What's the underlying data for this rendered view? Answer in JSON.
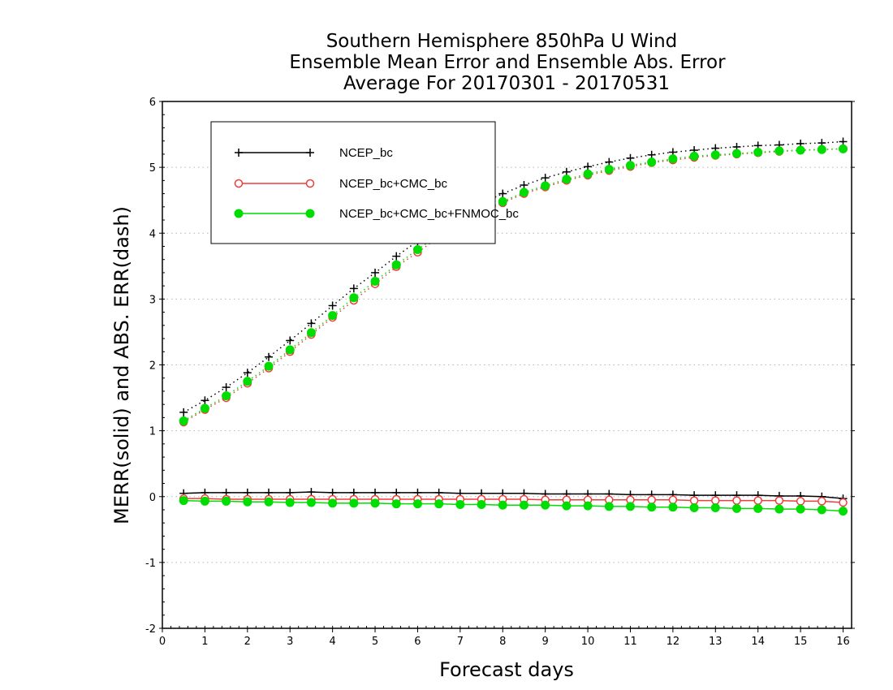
{
  "chart_data": {
    "type": "line",
    "title_lines": [
      "Southern Hemisphere 850hPa U Wind",
      "Ensemble Mean Error and Ensemble Abs. Error",
      "Average For 20170301 - 20170531"
    ],
    "xlabel": "Forecast days",
    "ylabel": "MERR(solid) and ABS. ERR(dash)",
    "xlim": [
      0,
      16.2
    ],
    "ylim": [
      -2,
      6
    ],
    "x_ticks": [
      "0",
      "1",
      "2",
      "3",
      "4",
      "5",
      "6",
      "7",
      "8",
      "9",
      "10",
      "11",
      "12",
      "13",
      "14",
      "15",
      "16"
    ],
    "y_ticks": [
      "-2",
      "-1",
      "0",
      "1",
      "2",
      "3",
      "4",
      "5",
      "6"
    ],
    "grid": "horizontal dotted",
    "legend_position": "top-left",
    "x": [
      0.5,
      1,
      1.5,
      2,
      2.5,
      3,
      3.5,
      4,
      4.5,
      5,
      5.5,
      6,
      6.5,
      7,
      7.5,
      8,
      8.5,
      9,
      9.5,
      10,
      10.5,
      11,
      11.5,
      12,
      12.5,
      13,
      13.5,
      14,
      14.5,
      15,
      15.5,
      16
    ],
    "series": [
      {
        "name": "NCEP_bc",
        "color": "#000000",
        "marker": "plus",
        "merr": [
          0.05,
          0.06,
          0.06,
          0.06,
          0.06,
          0.06,
          0.07,
          0.06,
          0.06,
          0.06,
          0.06,
          0.06,
          0.06,
          0.05,
          0.05,
          0.05,
          0.05,
          0.04,
          0.04,
          0.04,
          0.04,
          0.03,
          0.03,
          0.03,
          0.02,
          0.02,
          0.02,
          0.02,
          0.01,
          0.01,
          0.0,
          -0.03
        ],
        "abs_err": [
          1.28,
          1.46,
          1.66,
          1.88,
          2.12,
          2.37,
          2.63,
          2.9,
          3.16,
          3.4,
          3.65,
          3.88,
          4.1,
          4.28,
          4.45,
          4.6,
          4.73,
          4.84,
          4.93,
          5.01,
          5.08,
          5.14,
          5.19,
          5.23,
          5.26,
          5.29,
          5.31,
          5.33,
          5.34,
          5.36,
          5.37,
          5.39
        ]
      },
      {
        "name": "NCEP_bc+CMC_bc",
        "color": "#f03c3c",
        "marker": "open-circle",
        "merr": [
          -0.03,
          -0.03,
          -0.04,
          -0.04,
          -0.04,
          -0.04,
          -0.04,
          -0.04,
          -0.04,
          -0.04,
          -0.04,
          -0.04,
          -0.04,
          -0.04,
          -0.04,
          -0.04,
          -0.04,
          -0.05,
          -0.05,
          -0.05,
          -0.05,
          -0.05,
          -0.05,
          -0.05,
          -0.06,
          -0.06,
          -0.06,
          -0.06,
          -0.06,
          -0.07,
          -0.07,
          -0.09
        ],
        "abs_err": [
          1.13,
          1.32,
          1.5,
          1.72,
          1.95,
          2.2,
          2.46,
          2.72,
          2.98,
          3.23,
          3.49,
          3.71,
          3.94,
          4.13,
          4.31,
          4.46,
          4.6,
          4.7,
          4.8,
          4.88,
          4.95,
          5.01,
          5.07,
          5.11,
          5.15,
          5.18,
          5.2,
          5.22,
          5.24,
          5.26,
          5.27,
          5.28
        ]
      },
      {
        "name": "NCEP_bc+CMC_bc+FNMOC_bc",
        "color": "#00dd00",
        "marker": "filled-circle",
        "merr": [
          -0.06,
          -0.07,
          -0.07,
          -0.08,
          -0.08,
          -0.09,
          -0.09,
          -0.1,
          -0.1,
          -0.1,
          -0.11,
          -0.11,
          -0.11,
          -0.12,
          -0.12,
          -0.13,
          -0.13,
          -0.13,
          -0.14,
          -0.14,
          -0.15,
          -0.15,
          -0.16,
          -0.16,
          -0.17,
          -0.17,
          -0.18,
          -0.18,
          -0.19,
          -0.19,
          -0.2,
          -0.22
        ],
        "abs_err": [
          1.15,
          1.34,
          1.53,
          1.75,
          1.98,
          2.23,
          2.49,
          2.75,
          3.02,
          3.27,
          3.52,
          3.75,
          3.98,
          4.16,
          4.33,
          4.48,
          4.62,
          4.72,
          4.82,
          4.9,
          4.97,
          5.03,
          5.08,
          5.13,
          5.17,
          5.19,
          5.21,
          5.23,
          5.25,
          5.26,
          5.27,
          5.28
        ]
      }
    ]
  }
}
